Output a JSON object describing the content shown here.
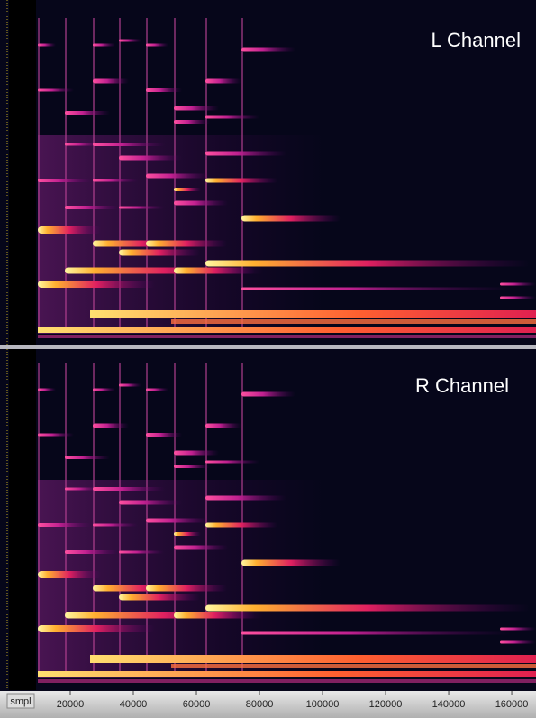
{
  "panels": [
    {
      "label": "L Channel"
    },
    {
      "label": "R Channel"
    }
  ],
  "ruler": {
    "unit": "smpl",
    "xlim": [
      0,
      167700
    ],
    "ticks": [
      20000,
      40000,
      60000,
      80000,
      100000,
      120000,
      140000,
      160000
    ]
  }
}
